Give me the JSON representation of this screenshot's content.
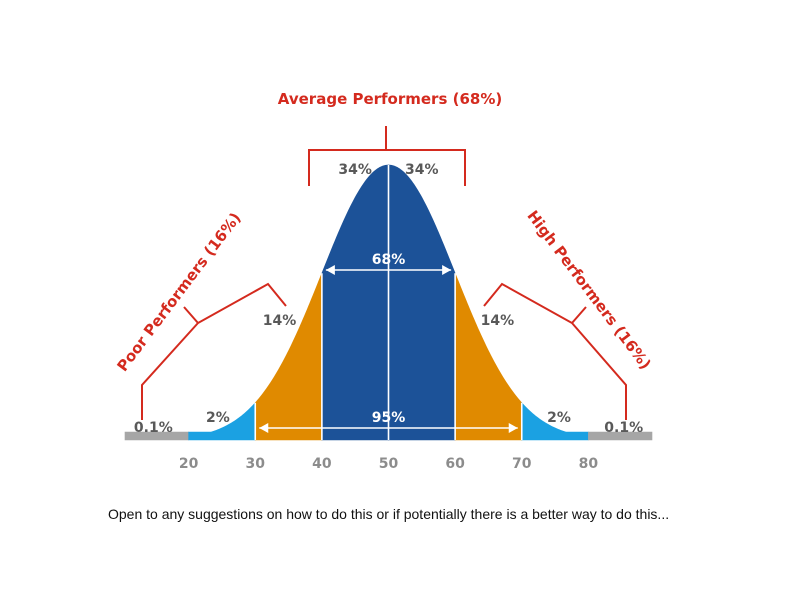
{
  "chart_data": {
    "type": "area",
    "title": "",
    "xlabel": "",
    "ylabel": "",
    "x_ticks": [
      20,
      30,
      40,
      50,
      60,
      70,
      80
    ],
    "xlim": [
      10,
      90
    ],
    "mean": 50,
    "std_dev": 10,
    "segments": [
      {
        "name": "left-tail",
        "from": 10,
        "to": 20,
        "percent": "0.1%",
        "color": "#a6a6a6"
      },
      {
        "name": "left-2sd",
        "from": 20,
        "to": 30,
        "percent": "2%",
        "color": "#1ba1e2"
      },
      {
        "name": "left-1sd",
        "from": 30,
        "to": 40,
        "percent": "14%",
        "color": "#e08a00"
      },
      {
        "name": "center-left",
        "from": 40,
        "to": 50,
        "percent": "34%",
        "color": "#1c5298"
      },
      {
        "name": "center-right",
        "from": 50,
        "to": 60,
        "percent": "34%",
        "color": "#1c5298"
      },
      {
        "name": "right-1sd",
        "from": 60,
        "to": 70,
        "percent": "14%",
        "color": "#e08a00"
      },
      {
        "name": "right-2sd",
        "from": 70,
        "to": 80,
        "percent": "2%",
        "color": "#1ba1e2"
      },
      {
        "name": "right-tail",
        "from": 80,
        "to": 90,
        "percent": "0.1%",
        "color": "#a6a6a6"
      }
    ],
    "spans": [
      {
        "label": "68%",
        "from": 40,
        "to": 60
      },
      {
        "label": "95%",
        "from": 30,
        "to": 70
      }
    ],
    "annotations": {
      "average": "Average Performers (68%)",
      "poor": "Poor Performers (16%)",
      "high": "High Performers (16%)"
    },
    "colors": {
      "annotation": "#d42a1e",
      "tick_label": "#8c8c8c",
      "pct_label": "#595959",
      "center_text": "#ffffff"
    }
  },
  "caption": "Open to any suggestions on how to do this or if potentially there is a better way to do this..."
}
